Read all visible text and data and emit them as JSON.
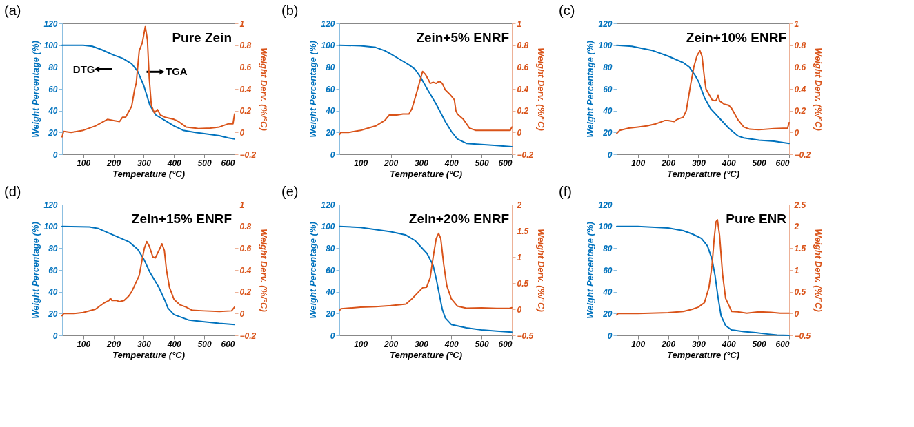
{
  "chart_data": [
    {
      "type": "line",
      "title": "(a)",
      "subtitle": "Pure Zein",
      "xlabel": "Temperature (°C)",
      "ylabel": "Weight Percentage (%)",
      "y2label": "Weight Derv. (%/°C)",
      "xlim": [
        30,
        600
      ],
      "xticks": [
        100,
        200,
        300,
        400,
        500,
        600
      ],
      "ylim": [
        0,
        120
      ],
      "yticks": [
        0,
        20,
        40,
        60,
        80,
        100,
        120
      ],
      "y2lim": [
        -0.2,
        1
      ],
      "y2ticks": [
        -0.2,
        0,
        0.2,
        0.4,
        0.6,
        0.8,
        1
      ],
      "annotations": [
        "DTG",
        "TGA"
      ],
      "series": [
        {
          "color": "#0072bd",
          "x": [
            30,
            100,
            130,
            160,
            200,
            230,
            260,
            280,
            300,
            320,
            340,
            370,
            400,
            430,
            470,
            500,
            550,
            580,
            600
          ],
          "values": [
            100,
            100,
            99,
            96,
            91,
            88,
            83,
            76,
            63,
            45,
            36,
            31,
            26,
            22,
            20,
            19,
            17,
            15,
            14
          ]
        },
        {
          "color": "#d95319",
          "axis": "y2",
          "x": [
            30,
            35,
            60,
            100,
            140,
            160,
            180,
            200,
            220,
            230,
            240,
            260,
            270,
            275,
            285,
            295,
            305,
            312,
            318,
            325,
            335,
            345,
            355,
            370,
            400,
            415,
            440,
            470,
            480,
            520,
            550,
            580,
            595,
            600
          ],
          "values": [
            -0.04,
            0.01,
            0,
            0.02,
            0.06,
            0.09,
            0.12,
            0.11,
            0.1,
            0.14,
            0.14,
            0.24,
            0.4,
            0.45,
            0.75,
            0.82,
            0.97,
            0.85,
            0.5,
            0.25,
            0.18,
            0.21,
            0.16,
            0.14,
            0.12,
            0.1,
            0.05,
            0.04,
            0.035,
            0.04,
            0.05,
            0.08,
            0.08,
            0.17
          ]
        }
      ]
    },
    {
      "type": "line",
      "title": "(b)",
      "subtitle": "Zein+5% ENRF",
      "xlabel": "Temperature (°C)",
      "ylabel": "Weight Percentage (%)",
      "y2label": "Weight Derv. (%/°C)",
      "xlim": [
        30,
        600
      ],
      "xticks": [
        100,
        200,
        300,
        400,
        500,
        600
      ],
      "ylim": [
        0,
        120
      ],
      "yticks": [
        0,
        20,
        40,
        60,
        80,
        100,
        120
      ],
      "y2lim": [
        -0.2,
        1
      ],
      "y2ticks": [
        -0.2,
        0,
        0.2,
        0.4,
        0.6,
        0.8,
        1
      ],
      "series": [
        {
          "color": "#0072bd",
          "x": [
            30,
            100,
            150,
            180,
            200,
            230,
            260,
            280,
            300,
            320,
            350,
            380,
            400,
            420,
            450,
            500,
            550,
            600
          ],
          "values": [
            100,
            99.5,
            98,
            95,
            92,
            87,
            82,
            78,
            70,
            60,
            46,
            30,
            21,
            14,
            10,
            9,
            8,
            7
          ]
        },
        {
          "color": "#d95319",
          "axis": "y2",
          "x": [
            30,
            35,
            60,
            100,
            150,
            180,
            195,
            220,
            240,
            260,
            270,
            285,
            295,
            305,
            315,
            325,
            330,
            340,
            350,
            360,
            370,
            380,
            395,
            410,
            415,
            420,
            440,
            460,
            480,
            550,
            595,
            600
          ],
          "values": [
            -0.02,
            0,
            0,
            0.02,
            0.06,
            0.11,
            0.16,
            0.16,
            0.17,
            0.17,
            0.22,
            0.36,
            0.46,
            0.56,
            0.53,
            0.48,
            0.45,
            0.46,
            0.45,
            0.47,
            0.45,
            0.39,
            0.35,
            0.3,
            0.2,
            0.17,
            0.12,
            0.04,
            0.02,
            0.02,
            0.02,
            0.05
          ]
        }
      ]
    },
    {
      "type": "line",
      "title": "(c)",
      "subtitle": "Zein+10% ENRF",
      "xlabel": "Temperature (°C)",
      "ylabel": "Weight Percentage (%)",
      "y2label": "Weight Derv. (%/°C)",
      "xlim": [
        30,
        600
      ],
      "xticks": [
        100,
        200,
        300,
        400,
        500,
        600
      ],
      "ylim": [
        0,
        120
      ],
      "yticks": [
        0,
        20,
        40,
        60,
        80,
        100,
        120
      ],
      "y2lim": [
        -0.2,
        1
      ],
      "y2ticks": [
        -0.2,
        0,
        0.2,
        0.4,
        0.6,
        0.8,
        1
      ],
      "series": [
        {
          "color": "#0072bd",
          "x": [
            30,
            80,
            150,
            200,
            250,
            270,
            290,
            300,
            320,
            340,
            370,
            400,
            430,
            450,
            500,
            550,
            600
          ],
          "values": [
            100,
            99,
            95,
            90,
            84,
            80,
            72,
            67,
            52,
            42,
            33,
            24,
            17,
            15,
            13,
            12,
            10
          ]
        },
        {
          "color": "#d95319",
          "axis": "y2",
          "x": [
            30,
            40,
            70,
            100,
            130,
            160,
            190,
            200,
            220,
            230,
            250,
            260,
            275,
            285,
            295,
            305,
            312,
            320,
            325,
            335,
            345,
            355,
            360,
            365,
            370,
            385,
            400,
            410,
            430,
            450,
            470,
            500,
            550,
            595,
            600
          ],
          "values": [
            -0.01,
            0.02,
            0.04,
            0.05,
            0.06,
            0.08,
            0.11,
            0.11,
            0.1,
            0.12,
            0.14,
            0.2,
            0.45,
            0.6,
            0.7,
            0.75,
            0.7,
            0.5,
            0.4,
            0.35,
            0.3,
            0.29,
            0.3,
            0.34,
            0.29,
            0.26,
            0.25,
            0.22,
            0.12,
            0.05,
            0.03,
            0.025,
            0.035,
            0.04,
            0.09
          ]
        }
      ]
    },
    {
      "type": "line",
      "title": "(d)",
      "subtitle": "Zein+15% ENRF",
      "xlabel": "Temperature (°C)",
      "ylabel": "Weight Percentage (%)",
      "y2label": "Weight Derv. (%/°C)",
      "xlim": [
        30,
        600
      ],
      "xticks": [
        100,
        200,
        300,
        400,
        500,
        600
      ],
      "ylim": [
        0,
        120
      ],
      "yticks": [
        0,
        20,
        40,
        60,
        80,
        100,
        120
      ],
      "y2lim": [
        -0.2,
        1
      ],
      "y2ticks": [
        -0.2,
        0,
        0.2,
        0.4,
        0.6,
        0.8,
        1
      ],
      "series": [
        {
          "color": "#0072bd",
          "x": [
            30,
            120,
            150,
            200,
            250,
            280,
            300,
            320,
            350,
            370,
            380,
            400,
            450,
            500,
            550,
            600
          ],
          "values": [
            100,
            99.5,
            98,
            92,
            86,
            79,
            70,
            58,
            44,
            32,
            25,
            19,
            14,
            12.5,
            11,
            10
          ]
        },
        {
          "color": "#d95319",
          "axis": "y2",
          "x": [
            30,
            35,
            70,
            100,
            140,
            170,
            185,
            190,
            195,
            210,
            220,
            235,
            250,
            260,
            270,
            285,
            295,
            302,
            310,
            318,
            330,
            338,
            345,
            352,
            360,
            368,
            375,
            385,
            400,
            420,
            440,
            460,
            500,
            550,
            590,
            600
          ],
          "values": [
            -0.02,
            0,
            0,
            0.01,
            0.04,
            0.1,
            0.12,
            0.14,
            0.12,
            0.12,
            0.11,
            0.12,
            0.16,
            0.2,
            0.26,
            0.35,
            0.5,
            0.6,
            0.66,
            0.62,
            0.52,
            0.51,
            0.55,
            0.59,
            0.64,
            0.58,
            0.4,
            0.24,
            0.13,
            0.08,
            0.06,
            0.03,
            0.025,
            0.02,
            0.025,
            0.06
          ]
        }
      ]
    },
    {
      "type": "line",
      "title": "(e)",
      "subtitle": "Zein+20% ENRF",
      "xlabel": "Temperature (°C)",
      "ylabel": "Weight Percentage (%)",
      "y2label": "Weight Derv. (%/°C)",
      "xlim": [
        30,
        600
      ],
      "xticks": [
        100,
        200,
        300,
        400,
        500,
        600
      ],
      "ylim": [
        0,
        120
      ],
      "yticks": [
        0,
        20,
        40,
        60,
        80,
        100,
        120
      ],
      "y2lim": [
        -0.5,
        2
      ],
      "y2ticks": [
        -0.5,
        0,
        0.5,
        1,
        1.5,
        2
      ],
      "series": [
        {
          "color": "#0072bd",
          "x": [
            30,
            100,
            200,
            250,
            280,
            300,
            320,
            340,
            350,
            360,
            370,
            380,
            400,
            450,
            500,
            550,
            600
          ],
          "values": [
            100,
            99,
            95,
            92,
            87,
            81,
            75,
            64,
            52,
            38,
            24,
            16,
            10,
            7,
            5,
            4,
            3
          ]
        },
        {
          "color": "#d95319",
          "axis": "y2",
          "x": [
            30,
            35,
            100,
            150,
            200,
            250,
            270,
            290,
            305,
            318,
            330,
            340,
            350,
            358,
            365,
            375,
            385,
            400,
            420,
            450,
            500,
            550,
            590,
            600
          ],
          "values": [
            -0.03,
            0.01,
            0.04,
            0.05,
            0.07,
            0.1,
            0.2,
            0.32,
            0.41,
            0.42,
            0.6,
            1.0,
            1.35,
            1.45,
            1.35,
            0.85,
            0.45,
            0.2,
            0.06,
            0.02,
            0.025,
            0.015,
            0.015,
            0.03
          ]
        }
      ]
    },
    {
      "type": "line",
      "title": "(f)",
      "subtitle": "Pure ENR",
      "xlabel": "Temperature (°C)",
      "ylabel": "Weight Percentage (%)",
      "y2label": "Weight Derv. (%/°C)",
      "xlim": [
        30,
        600
      ],
      "xticks": [
        100,
        200,
        300,
        400,
        500,
        600
      ],
      "ylim": [
        0,
        120
      ],
      "yticks": [
        0,
        20,
        40,
        60,
        80,
        100,
        120
      ],
      "y2lim": [
        -0.5,
        2.5
      ],
      "y2ticks": [
        -0.5,
        0,
        0.5,
        1,
        1.5,
        2,
        2.5
      ],
      "series": [
        {
          "color": "#0072bd",
          "x": [
            30,
            100,
            200,
            250,
            280,
            310,
            330,
            345,
            355,
            365,
            375,
            390,
            410,
            450,
            490,
            520,
            560,
            600
          ],
          "values": [
            100,
            100,
            98.5,
            96,
            93,
            89,
            82,
            70,
            55,
            35,
            18,
            9,
            5,
            3.5,
            2.5,
            1.5,
            0.3,
            0
          ]
        },
        {
          "color": "#d95319",
          "axis": "y2",
          "x": [
            30,
            35,
            100,
            200,
            250,
            280,
            300,
            320,
            335,
            345,
            352,
            358,
            363,
            370,
            380,
            390,
            400,
            410,
            430,
            460,
            500,
            540,
            570,
            600
          ],
          "values": [
            -0.03,
            0,
            0,
            0.02,
            0.05,
            0.1,
            0.15,
            0.25,
            0.6,
            1.1,
            1.7,
            2.1,
            2.15,
            1.8,
            0.9,
            0.35,
            0.2,
            0.05,
            0.04,
            0.01,
            0.04,
            0.03,
            0.01,
            0.01
          ]
        }
      ]
    }
  ]
}
